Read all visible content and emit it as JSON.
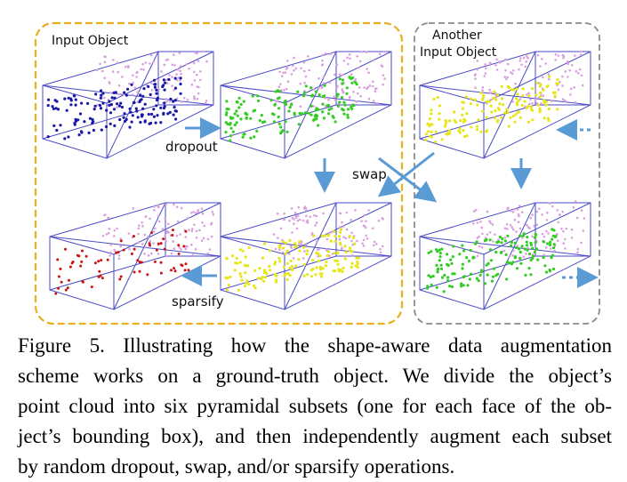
{
  "figure": {
    "labels": {
      "input_object": "Input Object",
      "another_line1": "Another",
      "another_line2": "Input Object",
      "dropout": "dropout",
      "swap": "swap",
      "sparsify": "sparsify"
    },
    "colors": {
      "left_panel_border": "#e8b020",
      "right_panel_border": "#8a8a8a",
      "box_edges": "#4a4ac8",
      "arrow": "#5b9bd5",
      "base_points": "#d9a0df",
      "subset_original": "#1a1aa8",
      "subset_dropout": "#33cc22",
      "subset_swap": "#e6e61a",
      "subset_sparsify": "#cc1111"
    }
  },
  "caption": {
    "lines": [
      "Figure 5. Illustrating how the shape-aware data augmentation",
      "scheme works on a ground-truth object.  We divide the object’s",
      "point cloud into six pyramidal subsets (one for each face of the ob-",
      "ject’s bounding box), and then independently augment each subset",
      "by random dropout, swap, and/or sparsify operations."
    ]
  }
}
